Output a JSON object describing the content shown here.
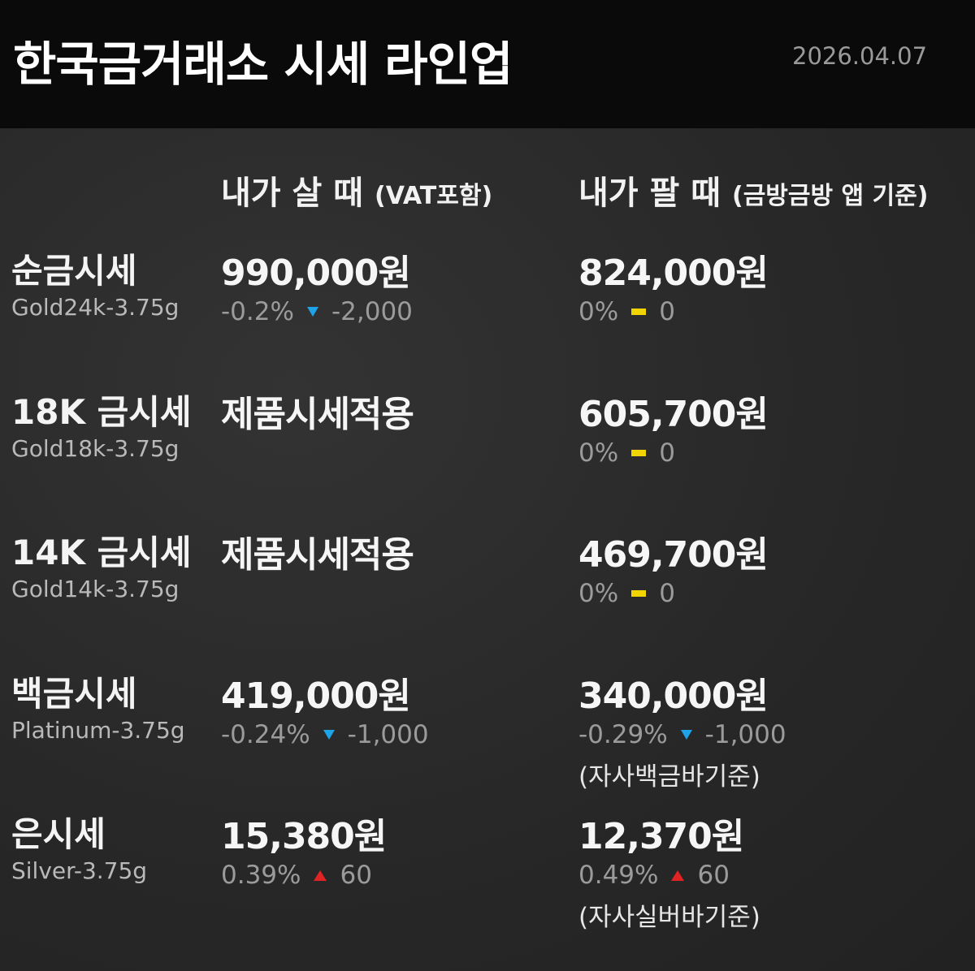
{
  "header": {
    "title": "한국금거래소 시세 라인업",
    "date": "2026.04.07"
  },
  "columns": [
    {
      "label": "내가 살 때",
      "note": "(VAT포함)"
    },
    {
      "label": "내가 팔 때",
      "note": "(금방금방 앱 기준)"
    }
  ],
  "rows": [
    {
      "name": "순금시세",
      "sub": "Gold24k-3.75g",
      "buy": {
        "price": "990,000원",
        "pct": "-0.2%",
        "change": "-2,000"
      },
      "sell": {
        "price": "824,000원",
        "pct": "0%",
        "change": "0"
      }
    },
    {
      "name": "18K 금시세",
      "sub": "Gold18k-3.75g",
      "buy": {
        "price": "제품시세적용"
      },
      "sell": {
        "price": "605,700원",
        "pct": "0%",
        "change": "0"
      }
    },
    {
      "name": "14K 금시세",
      "sub": "Gold14k-3.75g",
      "buy": {
        "price": "제품시세적용"
      },
      "sell": {
        "price": "469,700원",
        "pct": "0%",
        "change": "0"
      }
    },
    {
      "name": "백금시세",
      "sub": "Platinum-3.75g",
      "buy": {
        "price": "419,000원",
        "pct": "-0.24%",
        "change": "-1,000"
      },
      "sell": {
        "price": "340,000원",
        "pct": "-0.29%",
        "change": "-1,000",
        "note": "(자사백금바기준)"
      }
    },
    {
      "name": "은시세",
      "sub": "Silver-3.75g",
      "buy": {
        "price": "15,380원",
        "pct": "0.39%",
        "change": "60"
      },
      "sell": {
        "price": "12,370원",
        "pct": "0.49%",
        "change": "60",
        "note": "(자사실버바기준)"
      }
    }
  ]
}
